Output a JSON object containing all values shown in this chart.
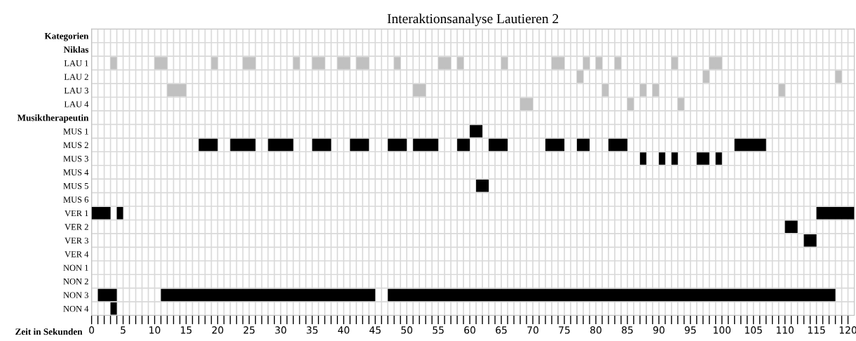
{
  "chart_data": {
    "type": "bar",
    "orientation": "horizontal",
    "title": "Interaktionsanalyse Lautieren 2",
    "xlabel": "Zeit in Sekunden",
    "categories": [
      "Kategorien",
      "Niklas",
      "LAU 1",
      "LAU 2",
      "LAU 3",
      "LAU 4",
      "Musiktherapeutin",
      "MUS 1",
      "MUS 2",
      "MUS 3",
      "MUS 4",
      "MUS 5",
      "MUS 6",
      "VER 1",
      "VER 2",
      "VER 3",
      "VER 4",
      "NON 1",
      "NON 2",
      "NON 3",
      "NON 4"
    ],
    "series": [
      {
        "base": [
          null,
          null,
          3,
          77,
          12,
          68,
          null,
          60,
          17,
          87,
          null,
          61,
          null,
          0,
          110,
          113,
          null,
          null,
          null,
          1,
          3
        ],
        "values": [
          null,
          null,
          1,
          1,
          3,
          2,
          null,
          2,
          3,
          1,
          null,
          2,
          null,
          3,
          2,
          2,
          null,
          null,
          null,
          3,
          1
        ],
        "colors": [
          null,
          null,
          "#c0c0c0",
          "#c0c0c0",
          "#c0c0c0",
          "#c0c0c0",
          null,
          "#000000",
          "#000000",
          "#000000",
          null,
          "#000000",
          null,
          "#000000",
          "#000000",
          "#000000",
          null,
          null,
          null,
          "#000000",
          "#000000"
        ]
      },
      {
        "base": [
          null,
          null,
          10,
          97,
          51,
          85,
          null,
          null,
          22,
          90,
          null,
          null,
          null,
          4,
          null,
          null,
          null,
          null,
          null,
          11,
          null
        ],
        "values": [
          null,
          null,
          2,
          1,
          2,
          1,
          null,
          null,
          4,
          1,
          null,
          null,
          null,
          1,
          null,
          null,
          null,
          null,
          null,
          34,
          null
        ],
        "colors": [
          null,
          null,
          "#c0c0c0",
          "#c0c0c0",
          "#c0c0c0",
          "#c0c0c0",
          null,
          null,
          "#000000",
          "#000000",
          null,
          null,
          null,
          "#000000",
          null,
          null,
          null,
          null,
          null,
          "#000000",
          null
        ]
      },
      {
        "base": [
          null,
          null,
          19,
          118,
          81,
          93,
          null,
          null,
          28,
          92,
          null,
          null,
          null,
          115,
          null,
          null,
          null,
          null,
          null,
          47,
          null
        ],
        "values": [
          null,
          null,
          1,
          1,
          1,
          1,
          null,
          null,
          4,
          1,
          null,
          null,
          null,
          6,
          null,
          null,
          null,
          null,
          null,
          71,
          null
        ],
        "colors": [
          null,
          null,
          "#c0c0c0",
          "#c0c0c0",
          "#c0c0c0",
          "#c0c0c0",
          null,
          null,
          "#000000",
          "#000000",
          null,
          null,
          null,
          "#000000",
          null,
          null,
          null,
          null,
          null,
          "#000000",
          null
        ]
      },
      {
        "base": [
          null,
          null,
          24,
          null,
          87,
          null,
          null,
          null,
          35,
          96,
          null,
          null,
          null,
          null,
          null,
          null,
          null,
          null,
          null,
          null,
          null
        ],
        "values": [
          null,
          null,
          2,
          null,
          1,
          null,
          null,
          null,
          3,
          2,
          null,
          null,
          null,
          null,
          null,
          null,
          null,
          null,
          null,
          null,
          null
        ],
        "colors": [
          null,
          null,
          "#c0c0c0",
          null,
          "#c0c0c0",
          null,
          null,
          null,
          "#000000",
          "#000000",
          null,
          null,
          null,
          null,
          null,
          null,
          null,
          null,
          null,
          null,
          null
        ]
      },
      {
        "base": [
          null,
          null,
          32,
          null,
          89,
          null,
          null,
          null,
          41,
          99,
          null,
          null,
          null,
          null,
          null,
          null,
          null,
          null,
          null,
          null,
          null
        ],
        "values": [
          null,
          null,
          1,
          null,
          1,
          null,
          null,
          null,
          3,
          1,
          null,
          null,
          null,
          null,
          null,
          null,
          null,
          null,
          null,
          null,
          null
        ],
        "colors": [
          null,
          null,
          "#c0c0c0",
          null,
          "#c0c0c0",
          null,
          null,
          null,
          "#000000",
          "#000000",
          null,
          null,
          null,
          null,
          null,
          null,
          null,
          null,
          null,
          null,
          null
        ]
      },
      {
        "base": [
          null,
          null,
          35,
          null,
          109,
          null,
          null,
          null,
          47,
          null,
          null,
          null,
          null,
          null,
          null,
          null,
          null,
          null,
          null,
          null,
          null
        ],
        "values": [
          null,
          null,
          2,
          null,
          1,
          null,
          null,
          null,
          3,
          null,
          null,
          null,
          null,
          null,
          null,
          null,
          null,
          null,
          null,
          null,
          null
        ],
        "colors": [
          null,
          null,
          "#c0c0c0",
          null,
          "#c0c0c0",
          null,
          null,
          null,
          "#000000",
          null,
          null,
          null,
          null,
          null,
          null,
          null,
          null,
          null,
          null,
          null,
          null
        ]
      },
      {
        "base": [
          null,
          null,
          39,
          null,
          null,
          null,
          null,
          null,
          51,
          null,
          null,
          null,
          null,
          null,
          null,
          null,
          null,
          null,
          null,
          null,
          null
        ],
        "values": [
          null,
          null,
          2,
          null,
          null,
          null,
          null,
          null,
          4,
          null,
          null,
          null,
          null,
          null,
          null,
          null,
          null,
          null,
          null,
          null,
          null
        ],
        "colors": [
          null,
          null,
          "#c0c0c0",
          null,
          null,
          null,
          null,
          null,
          "#000000",
          null,
          null,
          null,
          null,
          null,
          null,
          null,
          null,
          null,
          null,
          null,
          null
        ]
      },
      {
        "base": [
          null,
          null,
          42,
          null,
          null,
          null,
          null,
          null,
          58,
          null,
          null,
          null,
          null,
          null,
          null,
          null,
          null,
          null,
          null,
          null,
          null
        ],
        "values": [
          null,
          null,
          2,
          null,
          null,
          null,
          null,
          null,
          2,
          null,
          null,
          null,
          null,
          null,
          null,
          null,
          null,
          null,
          null,
          null,
          null
        ],
        "colors": [
          null,
          null,
          "#c0c0c0",
          null,
          null,
          null,
          null,
          null,
          "#000000",
          null,
          null,
          null,
          null,
          null,
          null,
          null,
          null,
          null,
          null,
          null,
          null
        ]
      },
      {
        "base": [
          null,
          null,
          48,
          null,
          null,
          null,
          null,
          null,
          63,
          null,
          null,
          null,
          null,
          null,
          null,
          null,
          null,
          null,
          null,
          null,
          null
        ],
        "values": [
          null,
          null,
          1,
          null,
          null,
          null,
          null,
          null,
          3,
          null,
          null,
          null,
          null,
          null,
          null,
          null,
          null,
          null,
          null,
          null,
          null
        ],
        "colors": [
          null,
          null,
          "#c0c0c0",
          null,
          null,
          null,
          null,
          null,
          "#000000",
          null,
          null,
          null,
          null,
          null,
          null,
          null,
          null,
          null,
          null,
          null,
          null
        ]
      },
      {
        "base": [
          null,
          null,
          55,
          null,
          null,
          null,
          null,
          null,
          72,
          null,
          null,
          null,
          null,
          null,
          null,
          null,
          null,
          null,
          null,
          null,
          null
        ],
        "values": [
          null,
          null,
          2,
          null,
          null,
          null,
          null,
          null,
          3,
          null,
          null,
          null,
          null,
          null,
          null,
          null,
          null,
          null,
          null,
          null,
          null
        ],
        "colors": [
          null,
          null,
          "#c0c0c0",
          null,
          null,
          null,
          null,
          null,
          "#000000",
          null,
          null,
          null,
          null,
          null,
          null,
          null,
          null,
          null,
          null,
          null,
          null
        ]
      },
      {
        "base": [
          null,
          null,
          58,
          null,
          null,
          null,
          null,
          null,
          77,
          null,
          null,
          null,
          null,
          null,
          null,
          null,
          null,
          null,
          null,
          null,
          null
        ],
        "values": [
          null,
          null,
          1,
          null,
          null,
          null,
          null,
          null,
          2,
          null,
          null,
          null,
          null,
          null,
          null,
          null,
          null,
          null,
          null,
          null,
          null
        ],
        "colors": [
          null,
          null,
          "#c0c0c0",
          null,
          null,
          null,
          null,
          null,
          "#000000",
          null,
          null,
          null,
          null,
          null,
          null,
          null,
          null,
          null,
          null,
          null,
          null
        ]
      },
      {
        "base": [
          null,
          null,
          65,
          null,
          null,
          null,
          null,
          null,
          82,
          null,
          null,
          null,
          null,
          null,
          null,
          null,
          null,
          null,
          null,
          null,
          null
        ],
        "values": [
          null,
          null,
          1,
          null,
          null,
          null,
          null,
          null,
          3,
          null,
          null,
          null,
          null,
          null,
          null,
          null,
          null,
          null,
          null,
          null,
          null
        ],
        "colors": [
          null,
          null,
          "#c0c0c0",
          null,
          null,
          null,
          null,
          null,
          "#000000",
          null,
          null,
          null,
          null,
          null,
          null,
          null,
          null,
          null,
          null,
          null,
          null
        ]
      },
      {
        "base": [
          null,
          null,
          73,
          null,
          null,
          null,
          null,
          null,
          102,
          null,
          null,
          null,
          null,
          null,
          null,
          null,
          null,
          null,
          null,
          null,
          null
        ],
        "values": [
          null,
          null,
          2,
          null,
          null,
          null,
          null,
          null,
          5,
          null,
          null,
          null,
          null,
          null,
          null,
          null,
          null,
          null,
          null,
          null,
          null
        ],
        "colors": [
          null,
          null,
          "#c0c0c0",
          null,
          null,
          null,
          null,
          null,
          "#000000",
          null,
          null,
          null,
          null,
          null,
          null,
          null,
          null,
          null,
          null,
          null,
          null
        ]
      },
      {
        "base": [
          null,
          null,
          78,
          null,
          null,
          null,
          null,
          null,
          null,
          null,
          null,
          null,
          null,
          null,
          null,
          null,
          null,
          null,
          null,
          null,
          null
        ],
        "values": [
          null,
          null,
          1,
          null,
          null,
          null,
          null,
          null,
          null,
          null,
          null,
          null,
          null,
          null,
          null,
          null,
          null,
          null,
          null,
          null,
          null
        ],
        "color": "#c0c0c0"
      },
      {
        "base": [
          null,
          null,
          80,
          null,
          null,
          null,
          null,
          null,
          null,
          null,
          null,
          null,
          null,
          null,
          null,
          null,
          null,
          null,
          null,
          null,
          null
        ],
        "values": [
          null,
          null,
          1,
          null,
          null,
          null,
          null,
          null,
          null,
          null,
          null,
          null,
          null,
          null,
          null,
          null,
          null,
          null,
          null,
          null,
          null
        ],
        "color": "#c0c0c0"
      },
      {
        "base": [
          null,
          null,
          83,
          null,
          null,
          null,
          null,
          null,
          null,
          null,
          null,
          null,
          null,
          null,
          null,
          null,
          null,
          null,
          null,
          null,
          null
        ],
        "values": [
          null,
          null,
          1,
          null,
          null,
          null,
          null,
          null,
          null,
          null,
          null,
          null,
          null,
          null,
          null,
          null,
          null,
          null,
          null,
          null,
          null
        ],
        "color": "#c0c0c0"
      },
      {
        "base": [
          null,
          null,
          92,
          null,
          null,
          null,
          null,
          null,
          null,
          null,
          null,
          null,
          null,
          null,
          null,
          null,
          null,
          null,
          null,
          null,
          null
        ],
        "values": [
          null,
          null,
          1,
          null,
          null,
          null,
          null,
          null,
          null,
          null,
          null,
          null,
          null,
          null,
          null,
          null,
          null,
          null,
          null,
          null,
          null
        ],
        "color": "#c0c0c0"
      },
      {
        "base": [
          null,
          null,
          98,
          null,
          null,
          null,
          null,
          null,
          null,
          null,
          null,
          null,
          null,
          null,
          null,
          null,
          null,
          null,
          null,
          null,
          null
        ],
        "values": [
          null,
          null,
          2,
          null,
          null,
          null,
          null,
          null,
          null,
          null,
          null,
          null,
          null,
          null,
          null,
          null,
          null,
          null,
          null,
          null,
          null
        ],
        "color": "#c0c0c0"
      }
    ],
    "xlim": [
      0,
      121
    ],
    "xticks": [
      0,
      {
        "value": 1,
        "label": null
      },
      {
        "value": 2,
        "label": null
      },
      {
        "value": 3,
        "label": null
      },
      {
        "value": 4,
        "label": null
      },
      5,
      {
        "value": 6,
        "label": null
      },
      {
        "value": 7,
        "label": null
      },
      {
        "value": 8,
        "label": null
      },
      {
        "value": 9,
        "label": null
      },
      10,
      {
        "value": 11,
        "label": null
      },
      {
        "value": 12,
        "label": null
      },
      {
        "value": 13,
        "label": null
      },
      {
        "value": 14,
        "label": null
      },
      15,
      {
        "value": 16,
        "label": null
      },
      {
        "value": 17,
        "label": null
      },
      {
        "value": 18,
        "label": null
      },
      {
        "value": 19,
        "label": null
      },
      20,
      {
        "value": 21,
        "label": null
      },
      {
        "value": 22,
        "label": null
      },
      {
        "value": 23,
        "label": null
      },
      {
        "value": 24,
        "label": null
      },
      25,
      {
        "value": 26,
        "label": null
      },
      {
        "value": 27,
        "label": null
      },
      {
        "value": 28,
        "label": null
      },
      {
        "value": 29,
        "label": null
      },
      30,
      {
        "value": 31,
        "label": null
      },
      {
        "value": 32,
        "label": null
      },
      {
        "value": 33,
        "label": null
      },
      {
        "value": 34,
        "label": null
      },
      35,
      {
        "value": 36,
        "label": null
      },
      {
        "value": 37,
        "label": null
      },
      {
        "value": 38,
        "label": null
      },
      {
        "value": 39,
        "label": null
      },
      40,
      {
        "value": 41,
        "label": null
      },
      {
        "value": 42,
        "label": null
      },
      {
        "value": 43,
        "label": null
      },
      {
        "value": 44,
        "label": null
      },
      45,
      {
        "value": 46,
        "label": null
      },
      {
        "value": 47,
        "label": null
      },
      {
        "value": 48,
        "label": null
      },
      {
        "value": 49,
        "label": null
      },
      50,
      {
        "value": 51,
        "label": null
      },
      {
        "value": 52,
        "label": null
      },
      {
        "value": 53,
        "label": null
      },
      {
        "value": 54,
        "label": null
      },
      55,
      {
        "value": 56,
        "label": null
      },
      {
        "value": 57,
        "label": null
      },
      {
        "value": 58,
        "label": null
      },
      {
        "value": 59,
        "label": null
      },
      60,
      {
        "value": 61,
        "label": null
      },
      {
        "value": 62,
        "label": null
      },
      {
        "value": 63,
        "label": null
      },
      {
        "value": 64,
        "label": null
      },
      65,
      {
        "value": 66,
        "label": null
      },
      {
        "value": 67,
        "label": null
      },
      {
        "value": 68,
        "label": null
      },
      {
        "value": 69,
        "label": null
      },
      70,
      {
        "value": 71,
        "label": null
      },
      {
        "value": 72,
        "label": null
      },
      {
        "value": 73,
        "label": null
      },
      {
        "value": 74,
        "label": null
      },
      75,
      {
        "value": 76,
        "label": null
      },
      {
        "value": 77,
        "label": null
      },
      {
        "value": 78,
        "label": null
      },
      {
        "value": 79,
        "label": null
      },
      80,
      {
        "value": 81,
        "label": null
      },
      {
        "value": 82,
        "label": null
      },
      {
        "value": 83,
        "label": null
      },
      {
        "value": 84,
        "label": null
      },
      85,
      {
        "value": 86,
        "label": null
      },
      {
        "value": 87,
        "label": null
      },
      {
        "value": 88,
        "label": null
      },
      {
        "value": 89,
        "label": null
      },
      90,
      {
        "value": 91,
        "label": null
      },
      {
        "value": 92,
        "label": null
      },
      {
        "value": 93,
        "label": null
      },
      {
        "value": 94,
        "label": null
      },
      95,
      {
        "value": 96,
        "label": null
      },
      {
        "value": 97,
        "label": null
      },
      {
        "value": 98,
        "label": null
      },
      {
        "value": 99,
        "label": null
      },
      100,
      {
        "value": 101,
        "label": null
      },
      {
        "value": 102,
        "label": null
      },
      {
        "value": 103,
        "label": null
      },
      {
        "value": 104,
        "label": null
      },
      105,
      {
        "value": 106,
        "label": null
      },
      {
        "value": 107,
        "label": null
      },
      {
        "value": 108,
        "label": null
      },
      {
        "value": 109,
        "label": null
      },
      110,
      {
        "value": 111,
        "label": null
      },
      {
        "value": 112,
        "label": null
      },
      {
        "value": 113,
        "label": null
      },
      {
        "value": 114,
        "label": null
      },
      115,
      {
        "value": 116,
        "label": null
      },
      {
        "value": 117,
        "label": null
      },
      {
        "value": 118,
        "label": null
      },
      {
        "value": 119,
        "label": null
      },
      120
    ],
    "grid": true
  }
}
